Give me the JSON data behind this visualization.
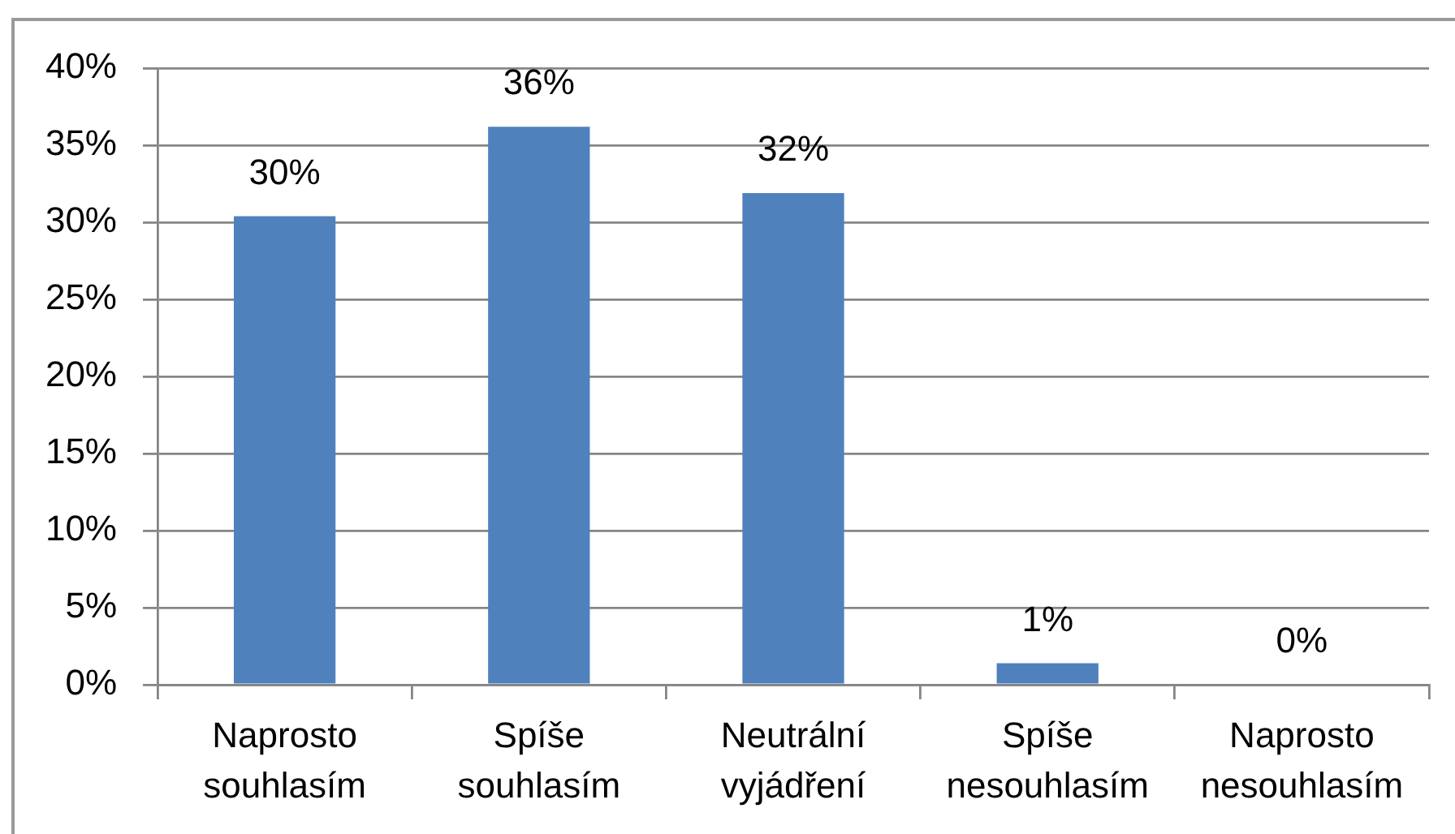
{
  "chart_data": {
    "type": "bar",
    "categories": [
      "Naprosto souhlasím",
      "Spíše souhlasím",
      "Neutrální vyjádření",
      "Spíše nesouhlasím",
      "Naprosto nesouhlasím"
    ],
    "values": [
      30.4,
      36.2,
      31.9,
      1.4,
      0
    ],
    "color": "#4f81bd",
    "value_labels": [
      "30%",
      "36%",
      "32%",
      "1%",
      "0%"
    ],
    "ylim": [
      0,
      40
    ],
    "yticks": [
      {
        "value": 0,
        "label": "0%"
      },
      {
        "value": 5,
        "label": "5%"
      },
      {
        "value": 10,
        "label": "10%"
      },
      {
        "value": 15,
        "label": "15%"
      },
      {
        "value": 20,
        "label": "20%"
      },
      {
        "value": 25,
        "label": "25%"
      },
      {
        "value": 30,
        "label": "30%"
      },
      {
        "value": 35,
        "label": "35%"
      },
      {
        "value": 40,
        "label": "40%"
      }
    ],
    "grid": "y"
  }
}
